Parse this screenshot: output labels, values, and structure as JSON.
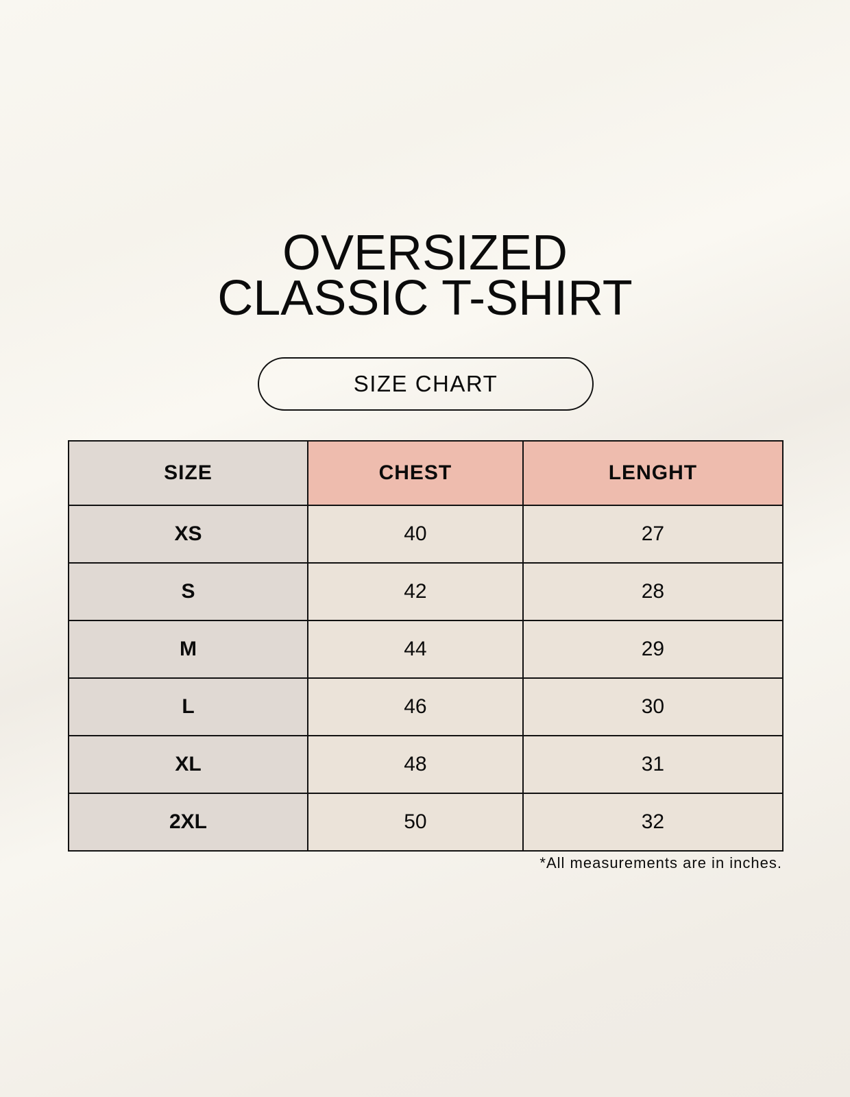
{
  "title": {
    "line1": "OVERSIZED",
    "line2": "CLASSIC T-SHIRT"
  },
  "badge": "SIZE CHART",
  "table": {
    "headers": [
      "SIZE",
      "CHEST",
      "LENGHT"
    ],
    "rows": [
      [
        "XS",
        "40",
        "27"
      ],
      [
        "S",
        "42",
        "28"
      ],
      [
        "M",
        "44",
        "29"
      ],
      [
        "L",
        "46",
        "30"
      ],
      [
        "XL",
        "48",
        "31"
      ],
      [
        "2XL",
        "50",
        "32"
      ]
    ]
  },
  "footnote": "*All measurements are in inches.",
  "colors": {
    "size_column": "#e0d9d3",
    "header_accent": "#eebcae",
    "value_cells": "#ebe3d9",
    "border": "#111111"
  }
}
